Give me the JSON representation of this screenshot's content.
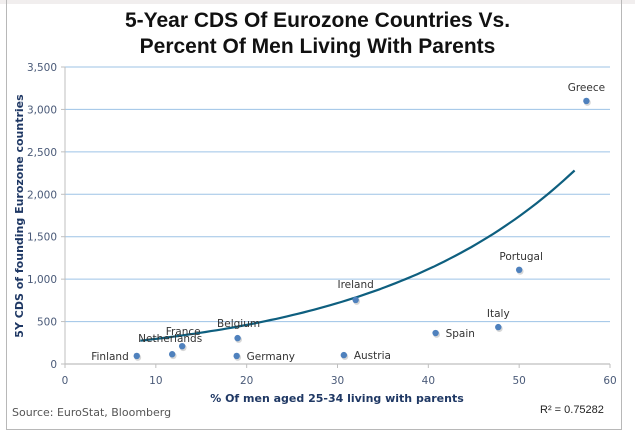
{
  "chart_data": {
    "type": "scatter",
    "title_line1": "5-Year CDS Of Eurozone Countries Vs.",
    "title_line2": "Percent Of Men Living With Parents",
    "xlabel": "% Of men aged 25-34 living with parents",
    "ylabel": "5Y CDS of founding Eurozone countries",
    "xlim": [
      0,
      60
    ],
    "ylim": [
      0,
      3500
    ],
    "xticks": [
      0,
      10,
      20,
      30,
      40,
      50,
      60
    ],
    "yticks": [
      0,
      500,
      1000,
      1500,
      2000,
      2500,
      3000,
      3500
    ],
    "ytick_labels": [
      "0",
      "500",
      "1,000",
      "1,500",
      "2,000",
      "2,500",
      "3,000",
      "3,500"
    ],
    "grid": "horizontal",
    "points": [
      {
        "label": "Finland",
        "x": 7.9,
        "y": 95
      },
      {
        "label": "Netherlands",
        "x": 11.8,
        "y": 115
      },
      {
        "label": "France",
        "x": 12.9,
        "y": 210
      },
      {
        "label": "Belgium",
        "x": 19.0,
        "y": 305
      },
      {
        "label": "Germany",
        "x": 18.9,
        "y": 95
      },
      {
        "label": "Ireland",
        "x": 32.0,
        "y": 755
      },
      {
        "label": "Austria",
        "x": 30.7,
        "y": 105
      },
      {
        "label": "Spain",
        "x": 40.8,
        "y": 365
      },
      {
        "label": "Italy",
        "x": 47.7,
        "y": 435
      },
      {
        "label": "Portugal",
        "x": 50.0,
        "y": 1110
      },
      {
        "label": "Greece",
        "x": 57.4,
        "y": 3100
      }
    ],
    "trendline": {
      "type": "exponential",
      "a": 190,
      "b": 0.0443,
      "x_from": 8.3,
      "x_to": 56.1,
      "r_squared_label": "R² = 0.75282"
    },
    "colors": {
      "point": "#4f81bd",
      "trend": "#0e5f7f",
      "grid": "#9dc3e6",
      "axis": "#bfbfbf"
    }
  },
  "source": "Source: EuroStat, Bloomberg"
}
